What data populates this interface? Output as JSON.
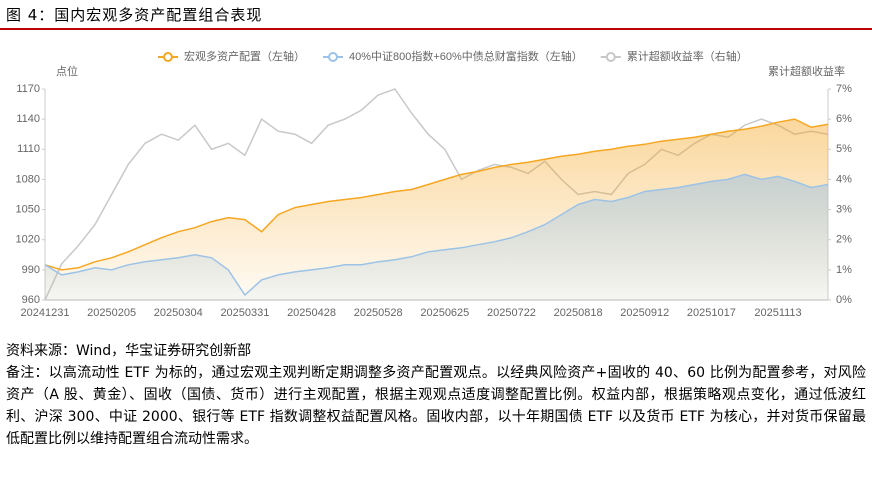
{
  "header": {
    "title": "图 4：国内宏观多资产配置组合表现"
  },
  "chart_data": {
    "type": "line",
    "ylabel": "点位",
    "y2label": "累计超额收益率",
    "categories": [
      "20241231",
      null,
      null,
      null,
      "20250205",
      null,
      null,
      null,
      "20250304",
      null,
      null,
      null,
      "20250331",
      null,
      null,
      null,
      "20250428",
      null,
      null,
      null,
      "20250528",
      null,
      null,
      null,
      "20250625",
      null,
      null,
      null,
      "20250722",
      null,
      null,
      null,
      "20250818",
      null,
      null,
      null,
      "20250912",
      null,
      null,
      null,
      "20251017",
      null,
      null,
      null,
      "20251113",
      null,
      null,
      null
    ],
    "ylim": [
      960,
      1170
    ],
    "yticks": [
      960,
      990,
      1020,
      1050,
      1080,
      1110,
      1140,
      1170
    ],
    "y2lim": [
      0,
      7
    ],
    "y2ticks": [
      {
        "value": 0,
        "label": "0%"
      },
      {
        "value": 1,
        "label": "1%"
      },
      {
        "value": 2,
        "label": "2%"
      },
      {
        "value": 3,
        "label": "3%"
      },
      {
        "value": 4,
        "label": "4%"
      },
      {
        "value": 5,
        "label": "5%"
      },
      {
        "value": 6,
        "label": "6%"
      },
      {
        "value": 7,
        "label": "7%"
      }
    ],
    "series": [
      {
        "name": "宏观多资产配置（左轴）",
        "color": "#f5a623",
        "area": true,
        "values": [
          995,
          990,
          992,
          998,
          1002,
          1008,
          1015,
          1022,
          1028,
          1032,
          1038,
          1042,
          1040,
          1028,
          1045,
          1052,
          1055,
          1058,
          1060,
          1062,
          1065,
          1068,
          1070,
          1075,
          1080,
          1085,
          1088,
          1092,
          1095,
          1097,
          1100,
          1103,
          1105,
          1108,
          1110,
          1113,
          1115,
          1118,
          1120,
          1122,
          1125,
          1128,
          1130,
          1133,
          1137,
          1140,
          1132,
          1135
        ]
      },
      {
        "name": "40%中证800指数+60%中债总财富指数（左轴）",
        "color": "#9cc3e6",
        "area": true,
        "values": [
          995,
          985,
          988,
          992,
          990,
          995,
          998,
          1000,
          1002,
          1005,
          1002,
          990,
          965,
          980,
          985,
          988,
          990,
          992,
          995,
          995,
          998,
          1000,
          1003,
          1008,
          1010,
          1012,
          1015,
          1018,
          1022,
          1028,
          1035,
          1045,
          1055,
          1060,
          1058,
          1062,
          1068,
          1070,
          1072,
          1075,
          1078,
          1080,
          1085,
          1080,
          1083,
          1078,
          1072,
          1075
        ]
      },
      {
        "name": "累计超额收益率（右轴）",
        "color": "#c8c8c8",
        "axis": "y2",
        "area": false,
        "values": [
          0,
          1.2,
          1.8,
          2.5,
          3.5,
          4.5,
          5.2,
          5.5,
          5.3,
          5.8,
          5.0,
          5.2,
          4.8,
          6.0,
          5.6,
          5.5,
          5.2,
          5.8,
          6.0,
          6.3,
          6.8,
          7.0,
          6.2,
          5.5,
          5.0,
          4.0,
          4.3,
          4.5,
          4.4,
          4.2,
          4.6,
          4.0,
          3.5,
          3.6,
          3.5,
          4.2,
          4.5,
          5.0,
          4.8,
          5.2,
          5.5,
          5.4,
          5.8,
          6.0,
          5.8,
          5.5,
          5.6,
          5.5
        ]
      }
    ]
  },
  "source": "资料来源：Wind，华宝证券研究创新部",
  "note": "备注：以高流动性 ETF 为标的，通过宏观主观判断定期调整多资产配置观点。以经典风险资产+固收的 40、60 比例为配置参考，对风险资产（A 股、黄金）、固收（国债、货币）进行主观配置，根据主观观点适度调整配置比例。权益内部，根据策略观点变化，通过低波红利、沪深 300、中证 2000、银行等 ETF 指数调整权益配置风格。固收内部，以十年期国债 ETF 以及货币 ETF 为核心，并对货币保留最低配置比例以维持配置组合流动性需求。"
}
